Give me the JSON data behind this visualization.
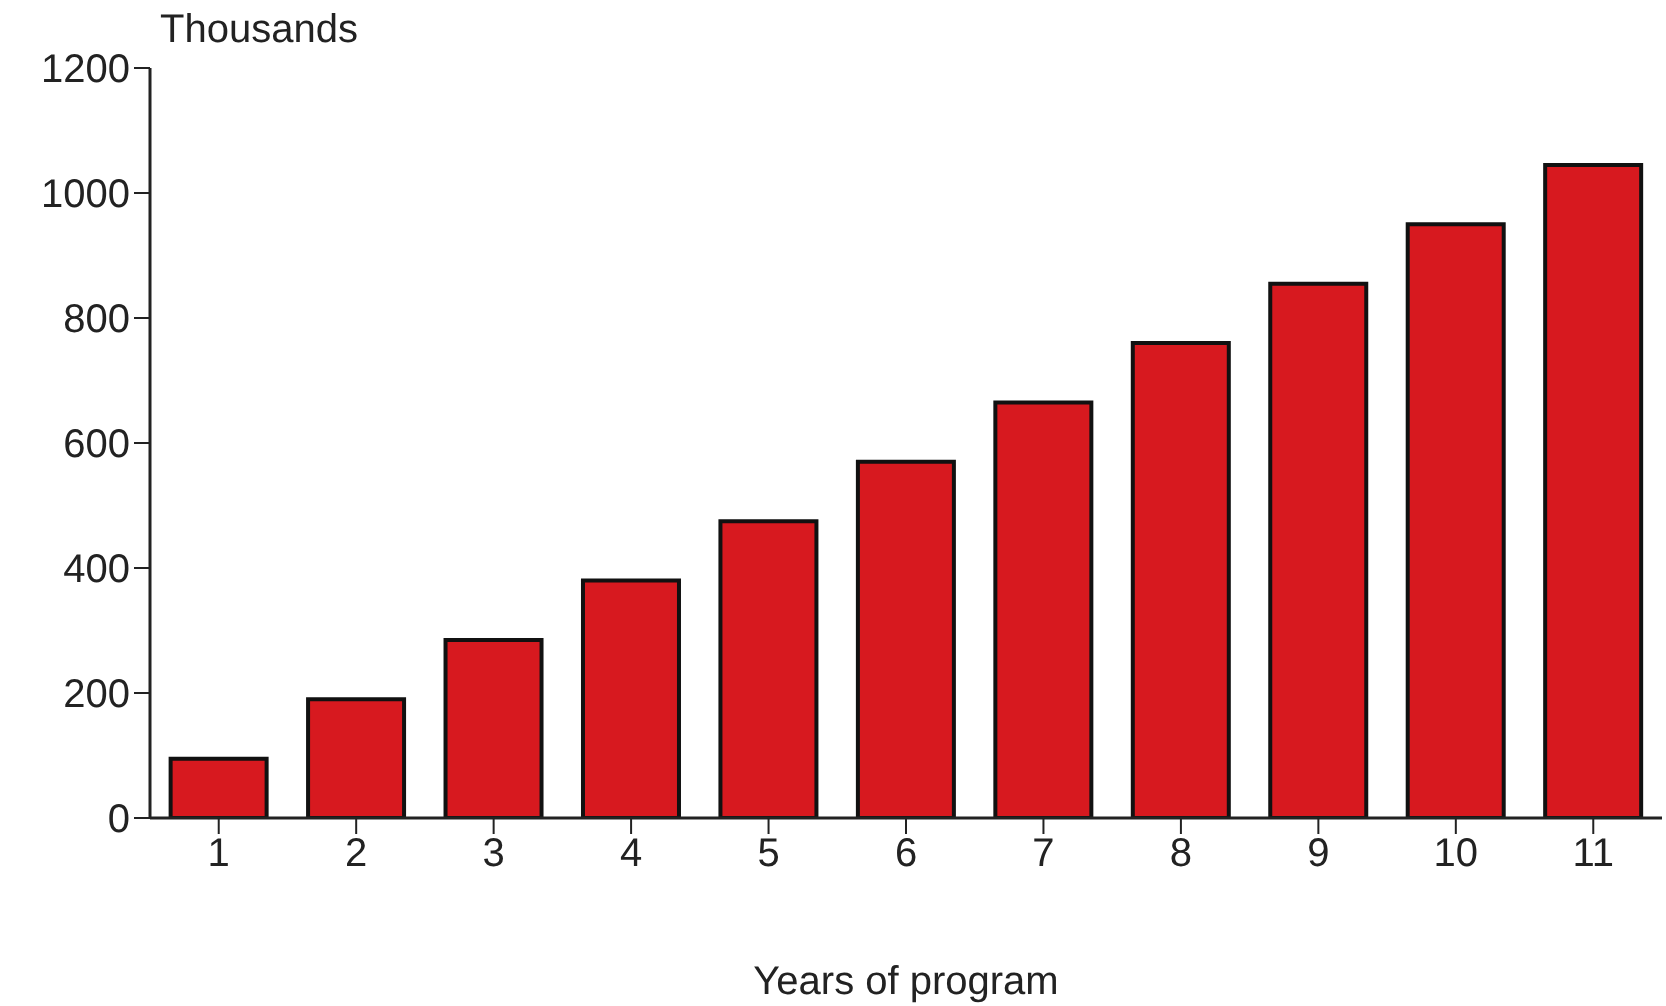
{
  "chart_data": {
    "type": "bar",
    "ylabel": "Thousands",
    "xlabel": "Years of program",
    "categories": [
      "1",
      "2",
      "3",
      "4",
      "5",
      "6",
      "7",
      "8",
      "9",
      "10",
      "11"
    ],
    "values": [
      95,
      190,
      285,
      380,
      475,
      570,
      665,
      760,
      855,
      950,
      1045
    ],
    "color": "#d7191f",
    "ylim": [
      0,
      1200
    ],
    "yticks": [
      0,
      200,
      400,
      600,
      800,
      1000,
      1200
    ],
    "grid": false,
    "legend": false
  }
}
